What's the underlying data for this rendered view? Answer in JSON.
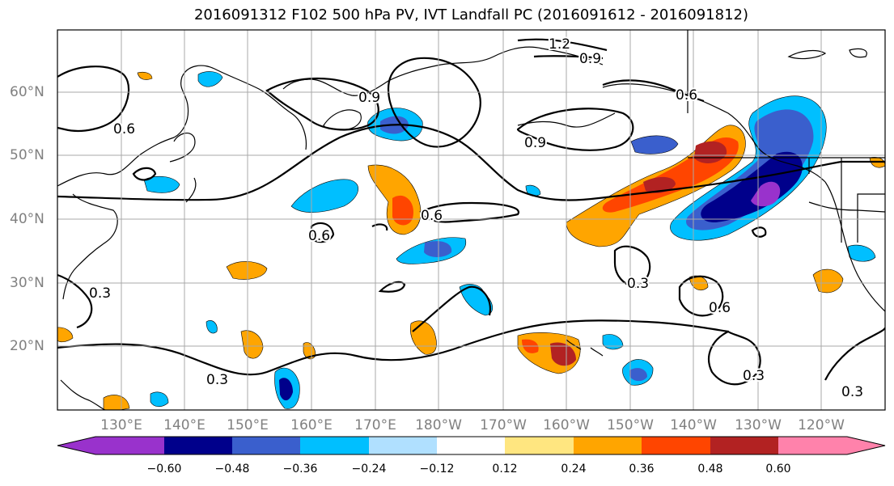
{
  "title": "2016091312 F102 500 hPa PV, IVT Landfall PC (2016091612 - 2016091812)",
  "lat_labels": [
    "60°N",
    "50°N",
    "40°N",
    "30°N",
    "20°N"
  ],
  "lon_labels": [
    "130°E",
    "140°E",
    "150°E",
    "160°E",
    "170°E",
    "180°W",
    "170°W",
    "160°W",
    "150°W",
    "140°W",
    "130°W",
    "120°W"
  ],
  "contour_labels": [
    "1.2",
    "0.9",
    "0.9",
    "0.9",
    "0.6",
    "0.6",
    "0.6",
    "0.6",
    "0.6",
    "0.3",
    "0.3",
    "0.3",
    "0.3",
    "0.3"
  ],
  "colorbar": {
    "ticks": [
      "−0.60",
      "−0.48",
      "−0.36",
      "−0.24",
      "−0.12",
      "0.12",
      "0.24",
      "0.36",
      "0.48",
      "0.60"
    ],
    "colors": [
      "#9932cc",
      "#00008b",
      "#3a5fcd",
      "#00bfff",
      "#b0e0ff",
      "#ffffff",
      "#ffe680",
      "#ffa500",
      "#ff4500",
      "#b22222",
      "#ff82ab"
    ]
  },
  "colors": {
    "outline": "#000000",
    "grid": "#a9a9a9",
    "axis_label": "#808080"
  }
}
